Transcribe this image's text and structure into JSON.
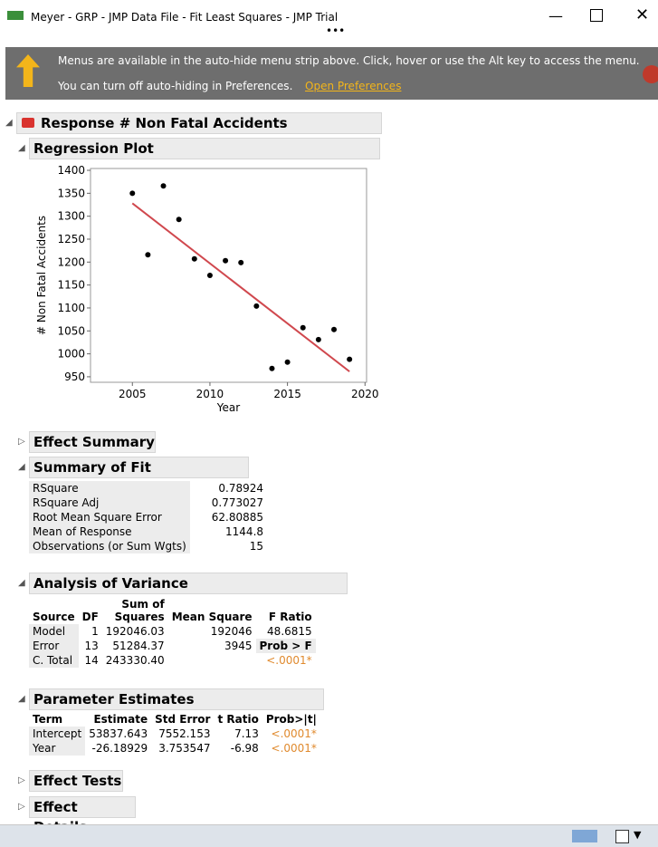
{
  "window": {
    "title": "Meyer - GRP - JMP Data File - Fit Least Squares - JMP Trial"
  },
  "banner": {
    "line1": "Menus are available in the auto-hide menu strip above. Click, hover or use the Alt key to access the menu.",
    "line2": "You can turn off auto-hiding in Preferences.",
    "link": "Open Preferences"
  },
  "report": {
    "title": "Response # Non Fatal Accidents"
  },
  "regression_plot": {
    "heading": "Regression Plot",
    "type": "scatter",
    "x": [
      2005,
      2006,
      2007,
      2008,
      2009,
      2010,
      2011,
      2012,
      2013,
      2014,
      2015,
      2016,
      2017,
      2018,
      2019
    ],
    "values": [
      1350,
      1216,
      1366,
      1293,
      1207,
      1171,
      1203,
      1199,
      1104,
      968,
      982,
      1057,
      1031,
      1053,
      988
    ],
    "xlabel": "Year",
    "ylabel": "# Non Fatal Accidents",
    "xlim": [
      2002.3,
      2020.1
    ],
    "ylim": [
      938,
      1404
    ],
    "xticks": [
      2005,
      2010,
      2015,
      2020
    ],
    "yticks": [
      950,
      1000,
      1050,
      1100,
      1150,
      1200,
      1250,
      1300,
      1350,
      1400
    ],
    "point_color": "#000000",
    "line_color": "#d0484e"
  },
  "effect_summary": {
    "heading": "Effect Summary"
  },
  "summary_of_fit": {
    "heading": "Summary of Fit",
    "rows": [
      [
        "RSquare",
        "0.78924"
      ],
      [
        "RSquare Adj",
        "0.773027"
      ],
      [
        "Root Mean Square Error",
        "62.80885"
      ],
      [
        "Mean of Response",
        "1144.8"
      ],
      [
        "Observations (or Sum Wgts)",
        "15"
      ]
    ]
  },
  "anova": {
    "heading": "Analysis of Variance",
    "header": [
      "Source",
      "DF",
      "Sum of Squares",
      "Mean Square",
      "F Ratio"
    ],
    "rows": [
      [
        "Model",
        "1",
        "192046.03",
        "192046",
        "48.6815"
      ],
      [
        "Error",
        "13",
        "51284.37",
        "3945",
        "Prob > F"
      ],
      [
        "C. Total",
        "14",
        "243330.40"
      ]
    ],
    "prob": "<.0001*"
  },
  "parameter_estimates": {
    "heading": "Parameter Estimates",
    "header": [
      "Term",
      "Estimate",
      "Std Error",
      "t Ratio",
      "Prob>|t|"
    ],
    "rows": [
      [
        "Intercept",
        "53837.643",
        "7552.153",
        "7.13",
        "<.0001*"
      ],
      [
        "Year",
        "-26.18929",
        "3.753547",
        "-6.98",
        "<.0001*"
      ]
    ]
  },
  "effect_tests": {
    "heading": "Effect Tests"
  },
  "effect_details": {
    "heading": "Effect Details"
  }
}
